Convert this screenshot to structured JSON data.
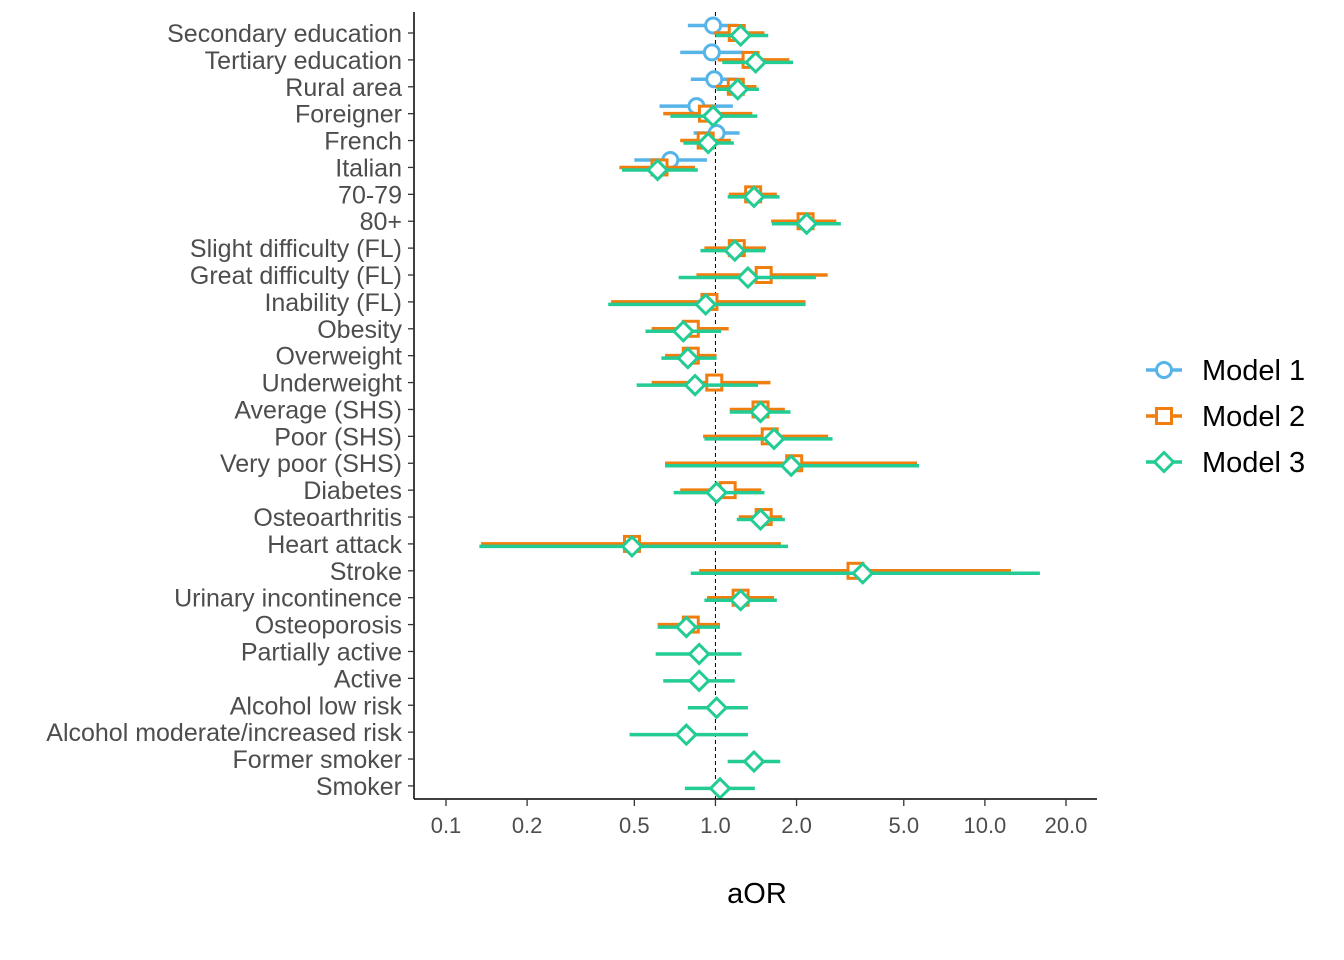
{
  "chart_data": {
    "type": "forest",
    "xlabel": "aOR",
    "x_scale": "log",
    "xlim": [
      0.085,
      23
    ],
    "x_ticks": [
      0.1,
      0.2,
      0.5,
      1.0,
      2.0,
      5.0,
      10.0,
      20.0
    ],
    "x_tick_labels": [
      "0.1",
      "0.2",
      "0.5",
      "1.0",
      "2.0",
      "5.0",
      "10.0",
      "20.0"
    ],
    "reference_line": 1.0,
    "categories": [
      "Secondary education",
      "Tertiary education",
      "Rural area",
      "Foreigner",
      "French",
      "Italian",
      "70-79",
      "80+",
      "Slight difficulty (FL)",
      "Great difficulty (FL)",
      "Inability (FL)",
      "Obesity",
      "Overweight",
      "Underweight",
      "Average (SHS)",
      "Poor (SHS)",
      "Very poor (SHS)",
      "Diabetes",
      "Osteoarthritis",
      "Heart attack",
      "Stroke",
      "Urinary incontinence",
      "Osteoporosis",
      "Partially active",
      "Active",
      "Alcohol low risk",
      "Alcohol moderate/increased risk",
      "Former smoker",
      "Smoker"
    ],
    "legend_position": "right",
    "series": [
      {
        "name": "Model 1",
        "color": "#56B4E9",
        "marker": "circle",
        "points": [
          {
            "category": "Secondary education",
            "or": 0.98,
            "lo": 0.79,
            "hi": 1.21
          },
          {
            "category": "Tertiary education",
            "or": 0.97,
            "lo": 0.74,
            "hi": 1.27
          },
          {
            "category": "Rural area",
            "or": 0.99,
            "lo": 0.81,
            "hi": 1.21
          },
          {
            "category": "Foreigner",
            "or": 0.85,
            "lo": 0.62,
            "hi": 1.16
          },
          {
            "category": "French",
            "or": 1.01,
            "lo": 0.83,
            "hi": 1.23
          },
          {
            "category": "Italian",
            "or": 0.68,
            "lo": 0.5,
            "hi": 0.93
          }
        ]
      },
      {
        "name": "Model 2",
        "color": "#F07E0E",
        "marker": "square",
        "points": [
          {
            "category": "Secondary education",
            "or": 1.2,
            "lo": 0.99,
            "hi": 1.52
          },
          {
            "category": "Tertiary education",
            "or": 1.35,
            "lo": 1.02,
            "hi": 1.88
          },
          {
            "category": "Rural area",
            "or": 1.19,
            "lo": 1.0,
            "hi": 1.42
          },
          {
            "category": "Foreigner",
            "or": 0.93,
            "lo": 0.64,
            "hi": 1.37
          },
          {
            "category": "French",
            "or": 0.92,
            "lo": 0.74,
            "hi": 1.14
          },
          {
            "category": "Italian",
            "or": 0.62,
            "lo": 0.44,
            "hi": 0.84
          },
          {
            "category": "70-79",
            "or": 1.38,
            "lo": 1.12,
            "hi": 1.69
          },
          {
            "category": "80+",
            "or": 2.16,
            "lo": 1.61,
            "hi": 2.81
          },
          {
            "category": "Slight difficulty (FL)",
            "or": 1.2,
            "lo": 0.91,
            "hi": 1.54
          },
          {
            "category": "Great difficulty (FL)",
            "or": 1.51,
            "lo": 0.85,
            "hi": 2.61
          },
          {
            "category": "Inability (FL)",
            "or": 0.95,
            "lo": 0.41,
            "hi": 2.16
          },
          {
            "category": "Obesity",
            "or": 0.81,
            "lo": 0.58,
            "hi": 1.12
          },
          {
            "category": "Overweight",
            "or": 0.81,
            "lo": 0.65,
            "hi": 1.01
          },
          {
            "category": "Underweight",
            "or": 0.99,
            "lo": 0.58,
            "hi": 1.6
          },
          {
            "category": "Average (SHS)",
            "or": 1.47,
            "lo": 1.13,
            "hi": 1.81
          },
          {
            "category": "Poor (SHS)",
            "or": 1.59,
            "lo": 0.9,
            "hi": 2.62
          },
          {
            "category": "Very poor (SHS)",
            "or": 1.96,
            "lo": 0.65,
            "hi": 5.6
          },
          {
            "category": "Diabetes",
            "or": 1.11,
            "lo": 0.74,
            "hi": 1.48
          },
          {
            "category": "Osteoarthritis",
            "or": 1.51,
            "lo": 1.22,
            "hi": 1.77
          },
          {
            "category": "Heart attack",
            "or": 0.49,
            "lo": 0.135,
            "hi": 1.75
          },
          {
            "category": "Stroke",
            "or": 3.31,
            "lo": 0.87,
            "hi": 12.5
          },
          {
            "category": "Urinary incontinence",
            "or": 1.24,
            "lo": 0.93,
            "hi": 1.65
          },
          {
            "category": "Osteoporosis",
            "or": 0.81,
            "lo": 0.61,
            "hi": 1.04
          }
        ]
      },
      {
        "name": "Model 3",
        "color": "#22CC94",
        "marker": "diamond",
        "points": [
          {
            "category": "Secondary education",
            "or": 1.24,
            "lo": 1.0,
            "hi": 1.57
          },
          {
            "category": "Tertiary education",
            "or": 1.41,
            "lo": 1.06,
            "hi": 1.94
          },
          {
            "category": "Rural area",
            "or": 1.21,
            "lo": 1.01,
            "hi": 1.45
          },
          {
            "category": "Foreigner",
            "or": 0.98,
            "lo": 0.68,
            "hi": 1.43
          },
          {
            "category": "French",
            "or": 0.94,
            "lo": 0.76,
            "hi": 1.17
          },
          {
            "category": "Italian",
            "or": 0.61,
            "lo": 0.45,
            "hi": 0.86
          },
          {
            "category": "70-79",
            "or": 1.39,
            "lo": 1.11,
            "hi": 1.73
          },
          {
            "category": "80+",
            "or": 2.18,
            "lo": 1.62,
            "hi": 2.92
          },
          {
            "category": "Slight difficulty (FL)",
            "or": 1.18,
            "lo": 0.88,
            "hi": 1.53
          },
          {
            "category": "Great difficulty (FL)",
            "or": 1.32,
            "lo": 0.73,
            "hi": 2.36
          },
          {
            "category": "Inability (FL)",
            "or": 0.92,
            "lo": 0.4,
            "hi": 2.16
          },
          {
            "category": "Obesity",
            "or": 0.76,
            "lo": 0.55,
            "hi": 1.05
          },
          {
            "category": "Overweight",
            "or": 0.79,
            "lo": 0.63,
            "hi": 1.01
          },
          {
            "category": "Underweight",
            "or": 0.84,
            "lo": 0.51,
            "hi": 1.44
          },
          {
            "category": "Average (SHS)",
            "or": 1.47,
            "lo": 1.13,
            "hi": 1.9
          },
          {
            "category": "Poor (SHS)",
            "or": 1.65,
            "lo": 0.91,
            "hi": 2.72
          },
          {
            "category": "Very poor (SHS)",
            "or": 1.91,
            "lo": 0.65,
            "hi": 5.7
          },
          {
            "category": "Diabetes",
            "or": 1.01,
            "lo": 0.7,
            "hi": 1.52
          },
          {
            "category": "Osteoarthritis",
            "or": 1.47,
            "lo": 1.2,
            "hi": 1.81
          },
          {
            "category": "Heart attack",
            "or": 0.49,
            "lo": 0.133,
            "hi": 1.86
          },
          {
            "category": "Stroke",
            "or": 3.52,
            "lo": 0.81,
            "hi": 16.0
          },
          {
            "category": "Urinary incontinence",
            "or": 1.24,
            "lo": 0.91,
            "hi": 1.69
          },
          {
            "category": "Osteoporosis",
            "or": 0.78,
            "lo": 0.61,
            "hi": 1.04
          },
          {
            "category": "Partially active",
            "or": 0.87,
            "lo": 0.6,
            "hi": 1.25
          },
          {
            "category": "Active",
            "or": 0.87,
            "lo": 0.64,
            "hi": 1.18
          },
          {
            "category": "Alcohol low risk",
            "or": 1.01,
            "lo": 0.79,
            "hi": 1.32
          },
          {
            "category": "Alcohol moderate/increased risk",
            "or": 0.78,
            "lo": 0.48,
            "hi": 1.32
          },
          {
            "category": "Former smoker",
            "or": 1.39,
            "lo": 1.11,
            "hi": 1.74
          },
          {
            "category": "Smoker",
            "or": 1.04,
            "lo": 0.77,
            "hi": 1.4
          }
        ]
      }
    ]
  }
}
